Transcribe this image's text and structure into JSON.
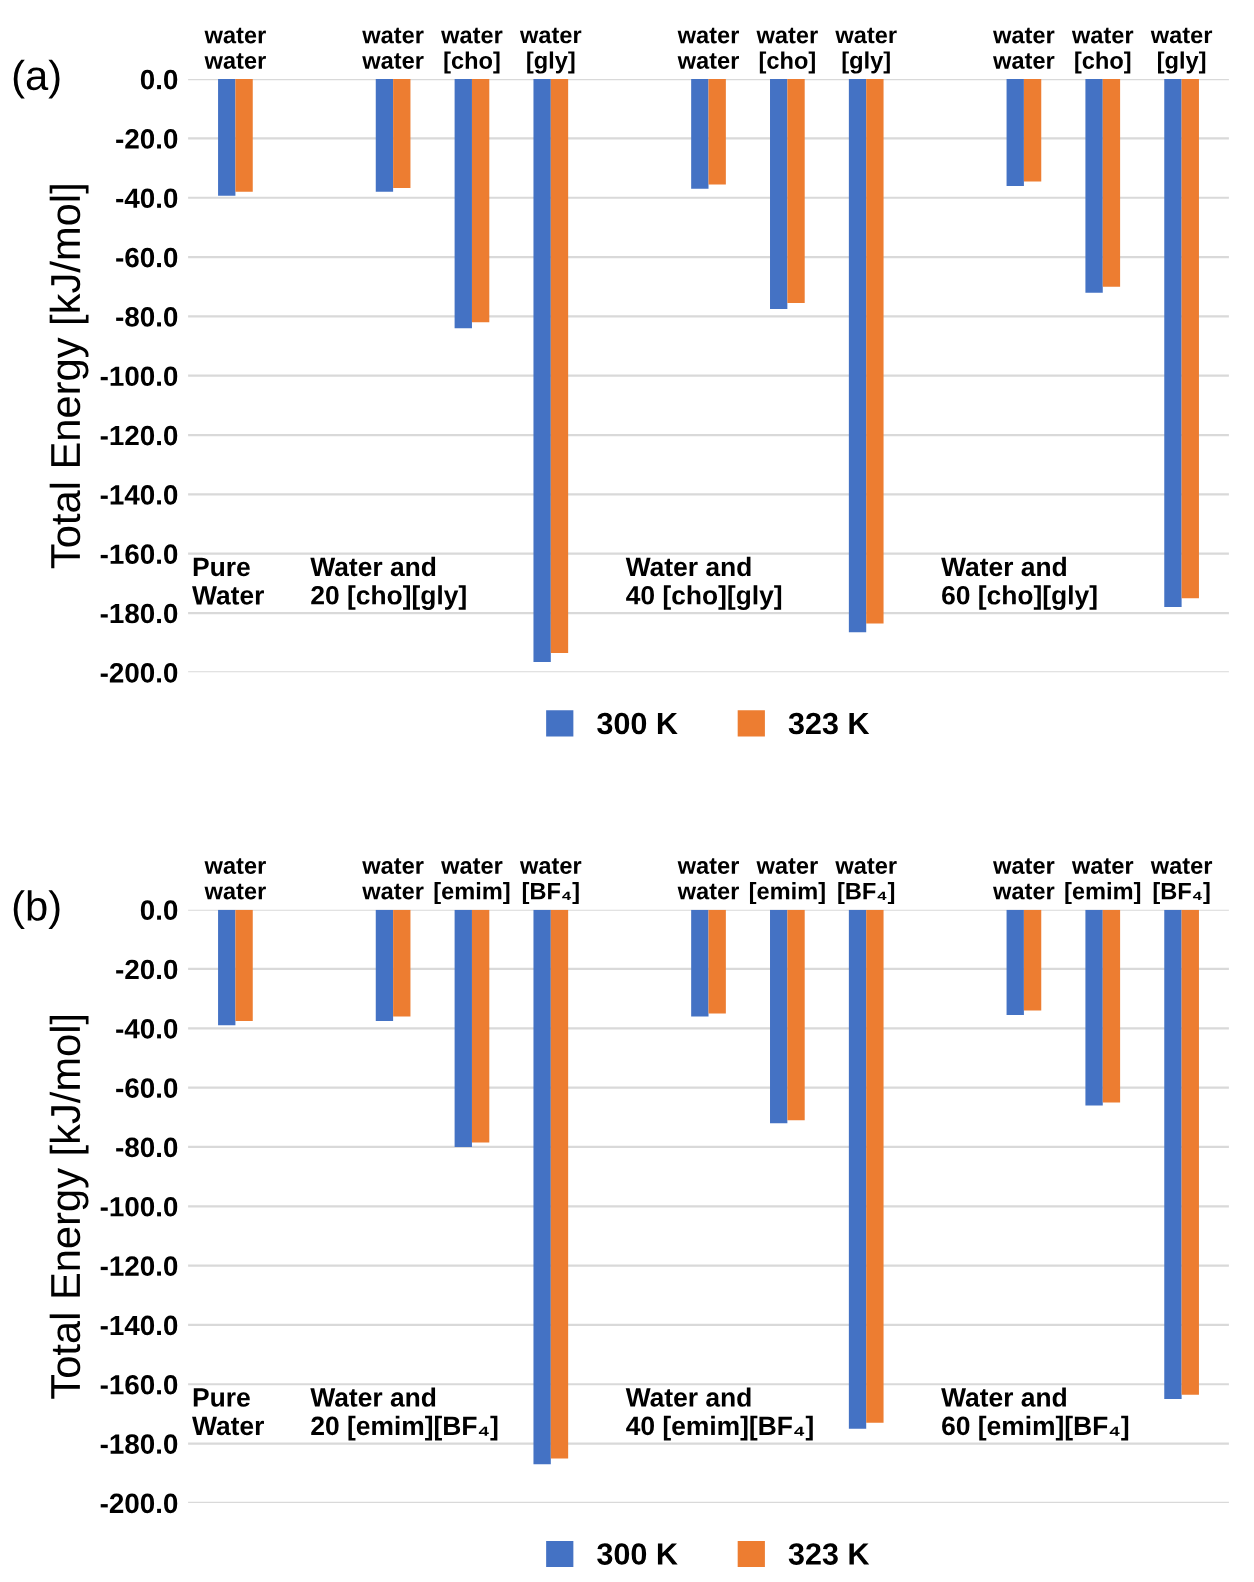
{
  "chart_data": [
    {
      "type": "bar",
      "title": "(a)",
      "ylabel": "Total Energy [kJ/mol]",
      "categories": [
        "water\nwater",
        null,
        "water\nwater",
        "water\n[cho]",
        "water\n[gly]",
        null,
        "water\nwater",
        "water\n[cho]",
        "water\n[gly]",
        null,
        "water\nwater",
        "water\n[cho]",
        "water\n[gly]"
      ],
      "series": [
        {
          "name": "300 K",
          "color": "#4472c4",
          "values": [
            -39.3,
            null,
            -38,
            -84,
            -196.5,
            null,
            -37,
            -77.5,
            -186.5,
            null,
            -36,
            -72,
            -178
          ]
        },
        {
          "name": "323 K",
          "color": "#ed7d31",
          "values": [
            -38,
            null,
            -36.7,
            -82,
            -193.5,
            null,
            -35.5,
            -75.5,
            -183.5,
            null,
            -34.5,
            -70,
            -175
          ]
        }
      ],
      "ylim": [
        -200,
        0
      ],
      "yticks": [
        {
          "value": 0,
          "label": "0.0"
        },
        {
          "value": -20,
          "label": "-20.0"
        },
        {
          "value": -40,
          "label": "-40.0"
        },
        {
          "value": -60,
          "label": "-60.0"
        },
        {
          "value": -80,
          "label": "-80.0"
        },
        {
          "value": -100,
          "label": "-100.0"
        },
        {
          "value": -120,
          "label": "-120.0"
        },
        {
          "value": -140,
          "label": "-140.0"
        },
        {
          "value": -160,
          "label": "-160.0"
        },
        {
          "value": -180,
          "label": "-180.0"
        },
        {
          "value": -200,
          "label": "-200.0"
        }
      ],
      "annotations": [
        "Pure\nWater",
        "Water and\n20 [cho][gly]",
        "Water and\n40 [cho][gly]",
        "Water and\n60 [cho][gly]"
      ],
      "grid": "y",
      "legend": "bottom"
    },
    {
      "type": "bar",
      "title": "(b)",
      "ylabel": "Total Energy [kJ/mol]",
      "categories": [
        "water\nwater",
        null,
        "water\nwater",
        "water\n[emim]",
        "water\n[BF₄]",
        null,
        "water\nwater",
        "water\n[emim]",
        "water\n[BF₄]",
        null,
        "water\nwater",
        "water\n[emim]",
        "water\n[BF₄]"
      ],
      "series": [
        {
          "name": "300 K",
          "color": "#4472c4",
          "values": [
            -39,
            null,
            -37.5,
            -80,
            -187,
            null,
            -36,
            -72,
            -175,
            null,
            -35.5,
            -66,
            -165
          ]
        },
        {
          "name": "323 K",
          "color": "#ed7d31",
          "values": [
            -37.5,
            null,
            -36,
            -78.5,
            -185,
            null,
            -35,
            -71,
            -173,
            null,
            -34,
            -65,
            -163.5
          ]
        }
      ],
      "ylim": [
        -200,
        0
      ],
      "yticks": [
        {
          "value": 0,
          "label": "0.0"
        },
        {
          "value": -20,
          "label": "-20.0"
        },
        {
          "value": -40,
          "label": "-40.0"
        },
        {
          "value": -60,
          "label": "-60.0"
        },
        {
          "value": -80,
          "label": "-80.0"
        },
        {
          "value": -100,
          "label": "-100.0"
        },
        {
          "value": -120,
          "label": "-120.0"
        },
        {
          "value": -140,
          "label": "-140.0"
        },
        {
          "value": -160,
          "label": "-160.0"
        },
        {
          "value": -180,
          "label": "-180.0"
        },
        {
          "value": -200,
          "label": "-200.0"
        }
      ],
      "annotations": [
        "Pure\nWater",
        "Water and\n20 [emim][BF₄]",
        "Water and\n40 [emim][BF₄]",
        "Water and\n60 [emim][BF₄]"
      ],
      "grid": "y",
      "legend": "bottom"
    }
  ]
}
